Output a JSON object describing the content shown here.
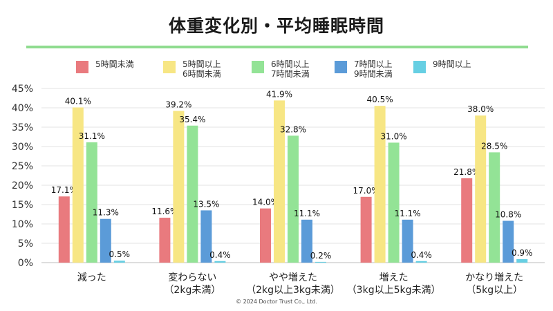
{
  "chart_data": {
    "type": "bar",
    "title": "体重変化別・平均睡眠時間",
    "categories": [
      [
        "減った"
      ],
      [
        "変わらない",
        "（2kg未満）"
      ],
      [
        "やや増えた",
        "（2kg以上3kg未満）"
      ],
      [
        "増えた",
        "（3kg以上5kg未満）"
      ],
      [
        "かなり増えた",
        "（5kg以上）"
      ]
    ],
    "series": [
      {
        "name": "5時間未満",
        "color": "#e97a7e",
        "values": [
          17.1,
          11.6,
          14.0,
          17.0,
          21.8
        ],
        "labels": [
          "17.1%",
          "11.6%",
          "14.0%",
          "17.0%",
          "21.8%"
        ]
      },
      {
        "name": "5時間以上\n6時間未満",
        "color": "#f7e684",
        "values": [
          40.1,
          39.2,
          41.9,
          40.5,
          38.0
        ],
        "labels": [
          "40.1%",
          "39.2%",
          "41.9%",
          "40.5%",
          "38.0%"
        ]
      },
      {
        "name": "6時間以上\n7時間未満",
        "color": "#93e396",
        "values": [
          31.1,
          35.4,
          32.8,
          31.0,
          28.5
        ],
        "labels": [
          "31.1%",
          "35.4%",
          "32.8%",
          "31.0%",
          "28.5%"
        ]
      },
      {
        "name": "7時間以上\n9時間未満",
        "color": "#5b9bd8",
        "values": [
          11.3,
          13.5,
          11.1,
          11.1,
          10.8
        ],
        "labels": [
          "11.3%",
          "13.5%",
          "11.1%",
          "11.1%",
          "10.8%"
        ]
      },
      {
        "name": "9時間以上",
        "color": "#66cfe3",
        "values": [
          0.5,
          0.4,
          0.2,
          0.4,
          0.9
        ],
        "labels": [
          "0.5%",
          "0.4%",
          "0.2%",
          "0.4%",
          "0.9%"
        ]
      }
    ],
    "ylim": [
      0,
      45
    ],
    "yticks": [
      0,
      5,
      10,
      15,
      20,
      25,
      30,
      35,
      40,
      45
    ],
    "ytick_labels": [
      "0%",
      "5%",
      "10%",
      "15%",
      "20%",
      "25%",
      "30%",
      "35%",
      "40%",
      "45%"
    ],
    "grid": true,
    "legend_position": "top"
  },
  "footer": {
    "copyright": "©  2024 Doctor Trust Co., Ltd."
  }
}
